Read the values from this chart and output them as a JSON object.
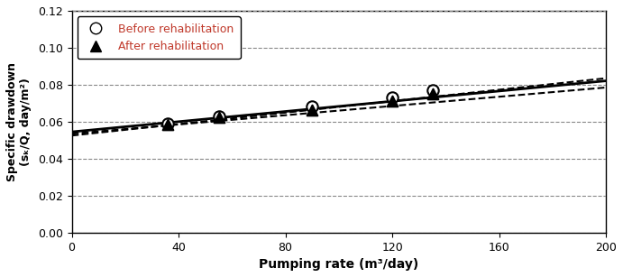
{
  "title": "",
  "xlabel": "Pumping rate (m³/day)",
  "ylabel": "Specific drawdown\n(sₖ/Q, day/m²)",
  "xlim": [
    0,
    200
  ],
  "ylim": [
    0,
    0.12
  ],
  "xticks": [
    0,
    40,
    80,
    120,
    160,
    200
  ],
  "yticks": [
    0,
    0.02,
    0.04,
    0.06,
    0.08,
    0.1,
    0.12
  ],
  "before_data_x": [
    36,
    55,
    90,
    120,
    135
  ],
  "before_data_y": [
    0.059,
    0.063,
    0.068,
    0.073,
    0.077
  ],
  "after_data_x": [
    36,
    55,
    90,
    120,
    135
  ],
  "after_data_y": [
    0.0585,
    0.0625,
    0.0665,
    0.071,
    0.075
  ],
  "before_line_slope": 0.000138,
  "before_line_intercept": 0.0545,
  "after_line_slope1": 0.000125,
  "after_line_intercept1": 0.0535,
  "after_line_slope2": 0.000155,
  "after_line_intercept2": 0.0525,
  "legend_before": "Before rehabilitation",
  "legend_after": "After rehabilitation",
  "line_color": "#000000",
  "marker_before_color": "#000000",
  "marker_after_color": "#000000",
  "legend_text_color": "#c0392b",
  "grid_color": "#888888",
  "figsize": [
    6.91,
    3.07
  ],
  "dpi": 100
}
